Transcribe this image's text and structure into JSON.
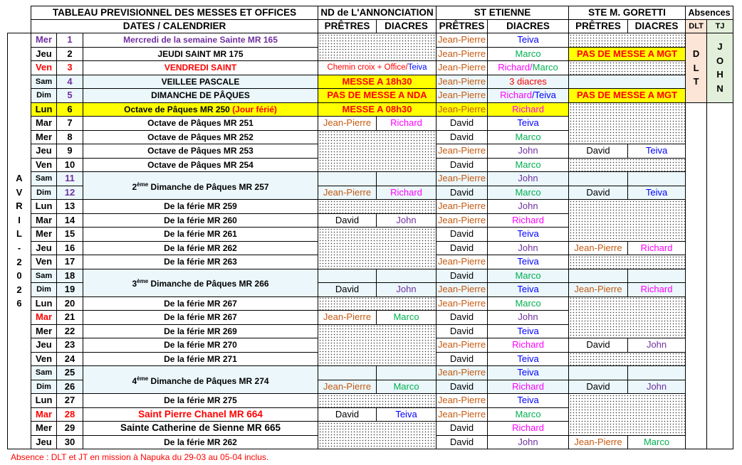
{
  "header": {
    "title": "TABLEAU PREVISIONNEL DES MESSES ET OFFICES",
    "subtitle": "DATES / CALENDRIER",
    "parishes": [
      "ND de L'ANNONCIATION",
      "ST ETIENNE",
      "STE M. GORETTI"
    ],
    "absences": "Absences",
    "pretres": "PRÊTRES",
    "diacres": "DIACRES",
    "dlt": "DLT",
    "tj": "TJ"
  },
  "month_letters": [
    "A",
    "V",
    "R",
    "I",
    "L",
    "-",
    "2",
    "0",
    "2",
    "6"
  ],
  "absence_dlt_letters": [
    "D",
    "L",
    "T"
  ],
  "absence_tj_letters": [
    "J",
    "O",
    "H",
    "N"
  ],
  "colors": {
    "Jean-Pierre": "#C55A11",
    "David": "#000000",
    "Richard": "#FF00FF",
    "Teiva": "#0000FF",
    "Marco": "#00B050",
    "John": "#7030A0",
    "red": "#FF0000",
    "purple": "#7030A0",
    "yellow": "#FFFF00",
    "weekend": "#EBF7FB",
    "dlt_bg": "#FCE4D6",
    "tj_bg": "#E2EFDA"
  },
  "rows": [
    {
      "day": "Mer",
      "num": "1",
      "dayColor": "#7030A0",
      "numColor": "#7030A0",
      "label": "Mercredi de la semaine Sainte MR 165",
      "labelColor": "#7030A0",
      "nda": {
        "dots": 2
      },
      "se": {
        "p": "Jean-Pierre",
        "d": "Teiva"
      },
      "mgt": {
        "dots": 1
      }
    },
    {
      "day": "Jeu",
      "num": "2",
      "label": "JEUDI SAINT MR 175",
      "se": {
        "p": "Jean-Pierre",
        "d": "Marco"
      },
      "mgt": {
        "merged": [
          {
            "text": "PAS DE MESSE A MGT",
            "color": "#FF0000"
          }
        ],
        "bg": "#FFFF00"
      }
    },
    {
      "day": "Ven",
      "num": "3",
      "dayColor": "#FF0000",
      "numColor": "#FF0000",
      "label": "VENDREDI SAINT",
      "labelColor": "#FF0000",
      "nda": {
        "merged": [
          {
            "text": "Chemin croix + Office/",
            "color": "#FF0000"
          },
          {
            "text": "Teiva",
            "color": "#0000FF"
          }
        ],
        "small": true
      },
      "se": {
        "p": "Jean-Pierre",
        "dparts": [
          {
            "text": "Richard/",
            "color": "#FF00FF"
          },
          {
            "text": "Marco",
            "color": "#00B050"
          }
        ]
      },
      "mgt": {
        "dots": 1
      }
    },
    {
      "day": "Sam",
      "num": "4",
      "numColor": "#7030A0",
      "bg": "weekend",
      "label": "VEILLEE PASCALE",
      "nda": {
        "merged": [
          {
            "text": "MESSE A 18h30",
            "color": "#FF0000"
          }
        ],
        "bg": "#FFFF00"
      },
      "se": {
        "p": "Jean-Pierre",
        "dparts": [
          {
            "text": "3 diacres",
            "color": "#FF0000"
          }
        ]
      },
      "mgt": {
        "merged": [],
        "bg": "#EBF7FB"
      }
    },
    {
      "day": "Dim",
      "num": "5",
      "numColor": "#7030A0",
      "bg": "weekend",
      "label": "DIMANCHE DE PÂQUES",
      "nda": {
        "merged": [
          {
            "text": "PAS DE MESSE A NDA",
            "color": "#FF0000"
          }
        ],
        "bg": "#FFFF00"
      },
      "se": {
        "p": "Jean-Pierre",
        "dparts": [
          {
            "text": "Richard",
            "color": "#FF00FF"
          },
          {
            "text": "/Teiva",
            "color": "#0000FF"
          }
        ]
      },
      "mgt": {
        "merged": [
          {
            "text": "PAS DE MESSE A MGT",
            "color": "#FF0000"
          }
        ],
        "bg": "#FFFF00"
      }
    },
    {
      "day": "Lun",
      "num": "6",
      "bg": "holiday",
      "label": "Octave de Pâques MR 250",
      "labelExtra": "(Jour férié)",
      "nda": {
        "merged": [
          {
            "text": "MESSE A 08h30",
            "color": "#FF0000"
          }
        ],
        "bg": "#FFFF00"
      },
      "se": {
        "p": "Jean-Pierre",
        "d": "Richard"
      },
      "mgt": {
        "dots": 3
      }
    },
    {
      "day": "Mar",
      "num": "7",
      "label": "Octave de Pâques MR 251",
      "nda": {
        "p": "Jean-Pierre",
        "d": "Richard"
      },
      "se": {
        "p": "David",
        "d": "Teiva"
      }
    },
    {
      "day": "Mer",
      "num": "8",
      "label": "Octave de Pâques MR 252",
      "nda": {
        "dots": 3
      },
      "se": {
        "p": "David",
        "d": "Marco"
      }
    },
    {
      "day": "Jeu",
      "num": "9",
      "label": "Octave de Pâques MR 253",
      "se": {
        "p": "Jean-Pierre",
        "d": "John"
      },
      "mgt": {
        "p": "David",
        "d": "Teiva"
      }
    },
    {
      "day": "Ven",
      "num": "10",
      "label": "Octave de Pâques MR 254",
      "se": {
        "p": "David",
        "d": "Marco"
      },
      "mgt": {
        "dots": 1
      }
    },
    {
      "day": "Sam",
      "num": "11",
      "numColor": "#7030A0",
      "bg": "weekend",
      "labelOrd": "2",
      "labelSup": "ème",
      "label": "Dimanche de Pâques MR 257",
      "labelSpan": 2,
      "nda": {
        "p": "",
        "d": ""
      },
      "se": {
        "p": "Jean-Pierre",
        "d": "John"
      },
      "mgt": {
        "p": "",
        "d": ""
      }
    },
    {
      "day": "Dim",
      "num": "12",
      "numColor": "#7030A0",
      "bg": "weekend",
      "nda": {
        "p": "Jean-Pierre",
        "d": "Richard"
      },
      "se": {
        "p": "David",
        "d": "Marco"
      },
      "mgt": {
        "p": "David",
        "d": "Teiva"
      }
    },
    {
      "day": "Lun",
      "num": "13",
      "label": "De la férie MR 259",
      "nda": {
        "dots": 1
      },
      "se": {
        "p": "Jean-Pierre",
        "d": "John"
      },
      "mgt": {
        "dots": 3
      }
    },
    {
      "day": "Mar",
      "num": "14",
      "label": "De la férie MR 260",
      "nda": {
        "p": "David",
        "d": "John"
      },
      "se": {
        "p": "Jean-Pierre",
        "d": "Richard"
      }
    },
    {
      "day": "Mer",
      "num": "15",
      "label": "De la férie MR 261",
      "nda": {
        "dots": 3
      },
      "se": {
        "p": "David",
        "d": "Teiva"
      }
    },
    {
      "day": "Jeu",
      "num": "16",
      "label": "De la férie MR 262",
      "se": {
        "p": "David",
        "d": "John"
      },
      "mgt": {
        "p": "Jean-Pierre",
        "d": "Richard"
      }
    },
    {
      "day": "Ven",
      "num": "17",
      "label": "De la férie MR 263",
      "se": {
        "p": "Jean-Pierre",
        "d": "Teiva"
      },
      "mgt": {
        "dots": 1
      }
    },
    {
      "day": "Sam",
      "num": "18",
      "bg": "weekend",
      "labelOrd": "3",
      "labelSup": "ème",
      "label": "Dimanche de Pâques MR 266",
      "labelSpan": 2,
      "nda": {
        "p": "",
        "d": ""
      },
      "se": {
        "p": "David",
        "d": "Marco"
      },
      "mgt": {
        "p": "",
        "d": ""
      }
    },
    {
      "day": "Dim",
      "num": "19",
      "bg": "weekend",
      "nda": {
        "p": "David",
        "d": "John"
      },
      "se": {
        "p": "Jean-Pierre",
        "d": "Teiva"
      },
      "mgt": {
        "p": "Jean-Pierre",
        "d": "Richard"
      }
    },
    {
      "day": "Lun",
      "num": "20",
      "label": "De la férie MR 267",
      "nda": {
        "dots": 1
      },
      "se": {
        "p": "Jean-Pierre",
        "d": "Marco"
      },
      "mgt": {
        "dots": 3
      }
    },
    {
      "day": "Mar",
      "num": "21",
      "dayColor": "#FF0000",
      "label": "De la férie MR 267",
      "nda": {
        "p": "Jean-Pierre",
        "d": "Marco"
      },
      "se": {
        "p": "David",
        "d": "John"
      }
    },
    {
      "day": "Mer",
      "num": "22",
      "label": "De la férie MR 269",
      "nda": {
        "dots": 3
      },
      "se": {
        "p": "David",
        "d": "Teiva"
      }
    },
    {
      "day": "Jeu",
      "num": "23",
      "label": "De la férie MR 270",
      "se": {
        "p": "Jean-Pierre",
        "d": "Richard"
      },
      "mgt": {
        "p": "David",
        "d": "John"
      }
    },
    {
      "day": "Ven",
      "num": "24",
      "label": "De la férie MR 271",
      "se": {
        "p": "David",
        "d": "Teiva"
      },
      "mgt": {
        "dots": 1
      }
    },
    {
      "day": "Sam",
      "num": "25",
      "bg": "weekend",
      "labelOrd": "4",
      "labelSup": "ème",
      "label": "Dimanche de Pâques MR 274",
      "labelSpan": 2,
      "nda": {
        "p": "",
        "d": ""
      },
      "se": {
        "p": "Jean-Pierre",
        "d": "Teiva"
      },
      "mgt": {
        "p": "",
        "d": ""
      }
    },
    {
      "day": "Dim",
      "num": "26",
      "bg": "weekend",
      "nda": {
        "p": "Jean-Pierre",
        "d": "Marco"
      },
      "se": {
        "p": "David",
        "d": "Richard"
      },
      "mgt": {
        "p": "David",
        "d": "John"
      }
    },
    {
      "day": "Lun",
      "num": "27",
      "label": "De la férie MR 275",
      "nda": {
        "dots": 1
      },
      "se": {
        "p": "Jean-Pierre",
        "d": "Teiva"
      },
      "mgt": {
        "dots": 3
      }
    },
    {
      "day": "Mar",
      "num": "28",
      "dayColor": "#FF0000",
      "numColor": "#FF0000",
      "label": "Saint Pierre Chanel MR 664",
      "labelColor": "#FF0000",
      "labelBig": true,
      "nda": {
        "p": "David",
        "d": "Teiva"
      },
      "se": {
        "p": "Jean-Pierre",
        "d": "Marco"
      }
    },
    {
      "day": "Mer",
      "num": "29",
      "label": "Sainte Catherine de Sienne MR 665",
      "labelBig": true,
      "nda": {
        "dots": 2
      },
      "se": {
        "p": "David",
        "d": "Richard"
      }
    },
    {
      "day": "Jeu",
      "num": "30",
      "label": "De la férie MR 262",
      "se": {
        "p": "David",
        "d": "John"
      },
      "mgt": {
        "p": "Jean-Pierre",
        "d": "Marco"
      }
    }
  ],
  "footnote": "Absence : DLT et JT en  mission à Napuka du 29-03 au 05-04 inclus."
}
